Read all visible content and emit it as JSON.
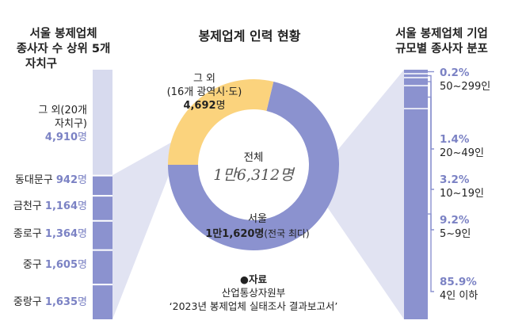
{
  "colors": {
    "purple": "#8b92cf",
    "purple_text": "#7b82c4",
    "purple_light": "#d7daee",
    "orange": "#fbd37d",
    "white": "#ffffff",
    "text": "#222222"
  },
  "titles": {
    "left_line1": "서울 봉제업체",
    "left_line2": "종사자 수 상위 5개",
    "left_line3": "자치구",
    "center": "봉제업계 인력 현황",
    "right_line1": "서울 봉제업체 기업",
    "right_line2": "규모별 종사자 분포"
  },
  "chart_data": [
    {
      "type": "pie",
      "title": "봉제업계 인력 현황",
      "total_label": "전체",
      "total_value": "1만6,312명",
      "slices": [
        {
          "label": "서울",
          "value": 11620,
          "value_text": "1만1,620명",
          "unit_suffix": "명",
          "note": "(전국 최다)",
          "color": "#8b92cf"
        },
        {
          "label": "그 외",
          "sublabel": "(16개 광역시·도)",
          "value": 4692,
          "value_text": "4,692",
          "unit_suffix": "명",
          "color": "#fbd37d"
        }
      ]
    },
    {
      "type": "bar",
      "title": "서울 봉제업체 종사자 수 상위 5개 자치구",
      "unit": "명",
      "categories": [
        "그 외(20개 자치구)",
        "동대문구",
        "금천구",
        "종로구",
        "중구",
        "중랑구"
      ],
      "label_lines": [
        [
          "그 외(20개",
          "자치구)"
        ],
        [
          "동대문구"
        ],
        [
          "금천구"
        ],
        [
          "종로구"
        ],
        [
          "중구"
        ],
        [
          "중랑구"
        ]
      ],
      "values": [
        4910,
        942,
        1164,
        1364,
        1605,
        1635
      ],
      "value_texts": [
        "4,910",
        "942",
        "1,164",
        "1,364",
        "1,605",
        "1,635"
      ]
    },
    {
      "type": "bar",
      "title": "서울 봉제업체 기업 규모별 종사자 분포",
      "unit": "%",
      "categories": [
        "50~299인",
        "20~49인",
        "10~19인",
        "5~9인",
        "4인 이하"
      ],
      "values": [
        0.2,
        1.4,
        3.2,
        9.2,
        85.9
      ],
      "value_texts": [
        "0.2%",
        "1.4%",
        "3.2%",
        "9.2%",
        "85.9%"
      ]
    }
  ],
  "source": {
    "bullet": "●",
    "title": "자료",
    "line1": "산업통상자원부",
    "line2": "‘2023년 봉제업체 실태조사 결과보고서’"
  }
}
